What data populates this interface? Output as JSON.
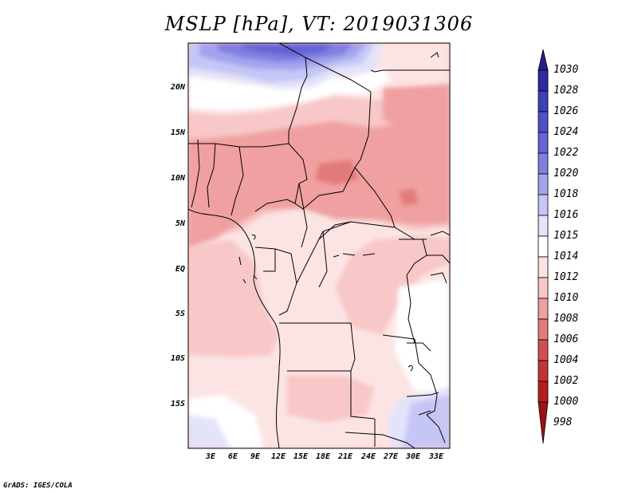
{
  "title": "MSLP [hPa], VT: 2019031306",
  "credit": "GrADS: IGES/COLA",
  "colors": {
    "c1030": "#2a1a8f",
    "c1028": "#2e2aa3",
    "c1026": "#3c3fb8",
    "c1024": "#5050c8",
    "c1022": "#6464d6",
    "c1020": "#7f7fe0",
    "c1018": "#a3a3ee",
    "c1016": "#c6c6f6",
    "c1015": "#e3e3fa",
    "c1014": "#ffffff",
    "c1012": "#fde4e4",
    "c1010": "#f8c7c7",
    "c1008": "#f0a0a0",
    "c1006": "#e17a7a",
    "c1004": "#d34f4f",
    "c1002": "#c63333",
    "c1000": "#b31e1e",
    "c998": "#a01010"
  },
  "map": {
    "lat_labels": [
      "20N",
      "15N",
      "10N",
      "5N",
      "EQ",
      "5S",
      "10S",
      "15S"
    ],
    "lon_labels": [
      "3E",
      "6E",
      "9E",
      "12E",
      "15E",
      "18E",
      "21E",
      "24E",
      "27E",
      "30E",
      "33E"
    ]
  },
  "colorbar": {
    "labels": [
      "1030",
      "1028",
      "1026",
      "1024",
      "1022",
      "1020",
      "1018",
      "1016",
      "1015",
      "1014",
      "1012",
      "1010",
      "1008",
      "1006",
      "1004",
      "1002",
      "1000",
      "998"
    ]
  }
}
